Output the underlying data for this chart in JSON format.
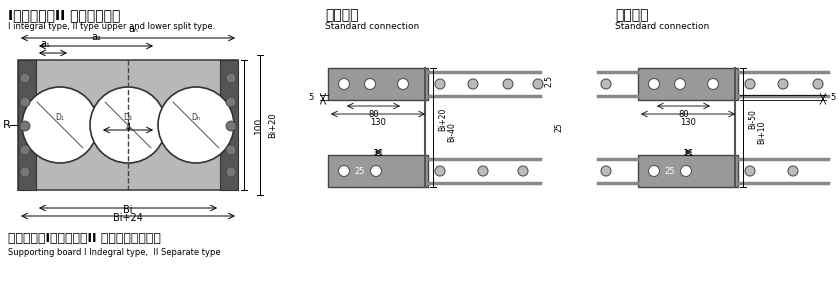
{
  "title1_zh": "I型整体式、II 型上下分开式",
  "title1_en": "I integral type, II type upper and lower split type.",
  "title2_zh": "标准联结",
  "title2_en": "Standard connection",
  "title3_zh": "标准联结",
  "title3_en": "Standard connection",
  "bottom_zh": "拖链支撑板I型整体式、II 型上下分开式开孔",
  "bottom_en": "Supporting board I Indegral type,  II Separate type",
  "bg_color": "#ffffff"
}
